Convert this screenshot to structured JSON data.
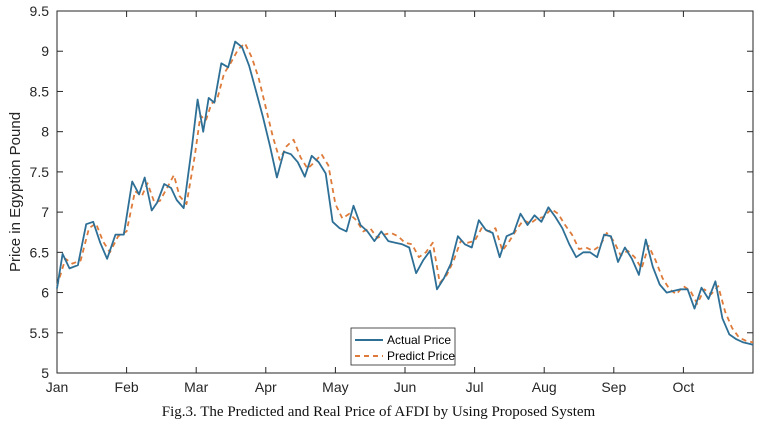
{
  "chart_data": {
    "type": "line",
    "title": "",
    "xlabel": "",
    "ylabel": "Price in Egyption Pound",
    "ylim": [
      5,
      9.5
    ],
    "xlim": [
      0,
      10
    ],
    "yticks": [
      "5",
      "5.5",
      "6",
      "6.5",
      "7",
      "7.5",
      "8",
      "8.5",
      "9",
      "9.5"
    ],
    "xticks": [
      "Jan",
      "Feb",
      "Mar",
      "Apr",
      "May",
      "Jun",
      "Jul",
      "Aug",
      "Sep",
      "Oct"
    ],
    "legend_position": "bottom-center",
    "caption": "Fig.3. The Predicted and Real Price of AFDI by Using Proposed System",
    "series": [
      {
        "name": "Actual Price",
        "color": "#2e6f96",
        "style": "solid",
        "x": [
          0.0,
          0.08,
          0.18,
          0.3,
          0.42,
          0.52,
          0.62,
          0.72,
          0.84,
          0.96,
          1.08,
          1.18,
          1.26,
          1.36,
          1.44,
          1.54,
          1.64,
          1.72,
          1.82,
          1.94,
          2.02,
          2.1,
          2.18,
          2.26,
          2.36,
          2.46,
          2.56,
          2.66,
          2.76,
          2.86,
          2.96,
          3.06,
          3.16,
          3.26,
          3.36,
          3.46,
          3.56,
          3.66,
          3.76,
          3.86,
          3.96,
          4.06,
          4.16,
          4.26,
          4.36,
          4.46,
          4.56,
          4.66,
          4.76,
          4.86,
          4.96,
          5.06,
          5.16,
          5.26,
          5.36,
          5.46,
          5.56,
          5.66,
          5.76,
          5.86,
          5.96,
          6.06,
          6.16,
          6.26,
          6.36,
          6.46,
          6.56,
          6.66,
          6.76,
          6.86,
          6.96,
          7.06,
          7.16,
          7.26,
          7.36,
          7.46,
          7.56,
          7.66,
          7.76,
          7.86,
          7.96,
          8.06,
          8.16,
          8.26,
          8.36,
          8.46,
          8.56,
          8.66,
          8.76,
          8.86,
          8.96,
          9.06,
          9.16,
          9.26,
          9.36,
          9.46,
          9.56,
          9.66,
          9.76,
          9.86,
          9.96,
          10.0
        ],
        "values": [
          6.05,
          6.48,
          6.3,
          6.34,
          6.85,
          6.88,
          6.62,
          6.42,
          6.72,
          6.72,
          7.38,
          7.22,
          7.43,
          7.02,
          7.12,
          7.35,
          7.3,
          7.15,
          7.05,
          7.82,
          8.4,
          8.0,
          8.42,
          8.36,
          8.85,
          8.8,
          9.12,
          9.05,
          8.82,
          8.5,
          8.18,
          7.82,
          7.43,
          7.75,
          7.72,
          7.62,
          7.44,
          7.7,
          7.62,
          7.48,
          6.88,
          6.8,
          6.76,
          7.08,
          6.84,
          6.76,
          6.64,
          6.76,
          6.64,
          6.62,
          6.6,
          6.56,
          6.24,
          6.4,
          6.52,
          6.04,
          6.18,
          6.36,
          6.7,
          6.6,
          6.56,
          6.9,
          6.78,
          6.74,
          6.44,
          6.7,
          6.74,
          6.98,
          6.84,
          6.96,
          6.88,
          7.06,
          6.94,
          6.8,
          6.6,
          6.44,
          6.5,
          6.5,
          6.44,
          6.72,
          6.7,
          6.38,
          6.56,
          6.42,
          6.22,
          6.66,
          6.32,
          6.1,
          6.0,
          6.02,
          6.04,
          6.04,
          5.8,
          6.06,
          5.92,
          6.14,
          5.68,
          5.48,
          5.42,
          5.38,
          5.36,
          5.35
        ]
      },
      {
        "name": "Predict Price",
        "color": "#de7b3a",
        "style": "dashed",
        "x": [
          0.0,
          0.12,
          0.22,
          0.34,
          0.46,
          0.56,
          0.66,
          0.76,
          0.88,
          1.0,
          1.12,
          1.22,
          1.3,
          1.4,
          1.48,
          1.58,
          1.68,
          1.76,
          1.86,
          1.98,
          2.06,
          2.14,
          2.22,
          2.3,
          2.4,
          2.5,
          2.6,
          2.7,
          2.8,
          2.9,
          3.0,
          3.1,
          3.2,
          3.3,
          3.4,
          3.5,
          3.6,
          3.7,
          3.8,
          3.9,
          4.0,
          4.1,
          4.2,
          4.3,
          4.4,
          4.5,
          4.6,
          4.7,
          4.8,
          4.9,
          5.0,
          5.1,
          5.2,
          5.3,
          5.4,
          5.5,
          5.6,
          5.7,
          5.8,
          5.9,
          6.0,
          6.1,
          6.2,
          6.3,
          6.4,
          6.5,
          6.6,
          6.7,
          6.8,
          6.9,
          7.0,
          7.1,
          7.2,
          7.3,
          7.4,
          7.5,
          7.6,
          7.7,
          7.8,
          7.9,
          8.0,
          8.1,
          8.2,
          8.3,
          8.4,
          8.5,
          8.6,
          8.7,
          8.8,
          8.9,
          9.0,
          9.1,
          9.2,
          9.3,
          9.4,
          9.5,
          9.6,
          9.7,
          9.8,
          9.9,
          10.0
        ],
        "values": [
          6.08,
          6.42,
          6.36,
          6.4,
          6.8,
          6.86,
          6.64,
          6.5,
          6.7,
          6.76,
          7.26,
          7.2,
          7.36,
          7.12,
          7.14,
          7.3,
          7.46,
          7.2,
          7.1,
          7.7,
          8.2,
          8.14,
          8.35,
          8.4,
          8.72,
          8.86,
          9.02,
          9.1,
          8.92,
          8.66,
          8.3,
          7.94,
          7.65,
          7.82,
          7.9,
          7.68,
          7.54,
          7.62,
          7.72,
          7.58,
          7.1,
          6.92,
          6.98,
          6.9,
          6.76,
          6.8,
          6.68,
          6.72,
          6.74,
          6.7,
          6.62,
          6.6,
          6.44,
          6.5,
          6.62,
          6.12,
          6.22,
          6.4,
          6.64,
          6.62,
          6.64,
          6.8,
          6.76,
          6.8,
          6.52,
          6.64,
          6.78,
          6.9,
          6.86,
          6.92,
          6.94,
          7.04,
          6.98,
          6.84,
          6.72,
          6.54,
          6.56,
          6.52,
          6.58,
          6.74,
          6.64,
          6.46,
          6.52,
          6.44,
          6.3,
          6.58,
          6.4,
          6.18,
          6.04,
          5.98,
          6.08,
          6.02,
          5.86,
          6.04,
          5.98,
          6.08,
          5.76,
          5.56,
          5.44,
          5.4,
          5.38
        ]
      }
    ]
  }
}
